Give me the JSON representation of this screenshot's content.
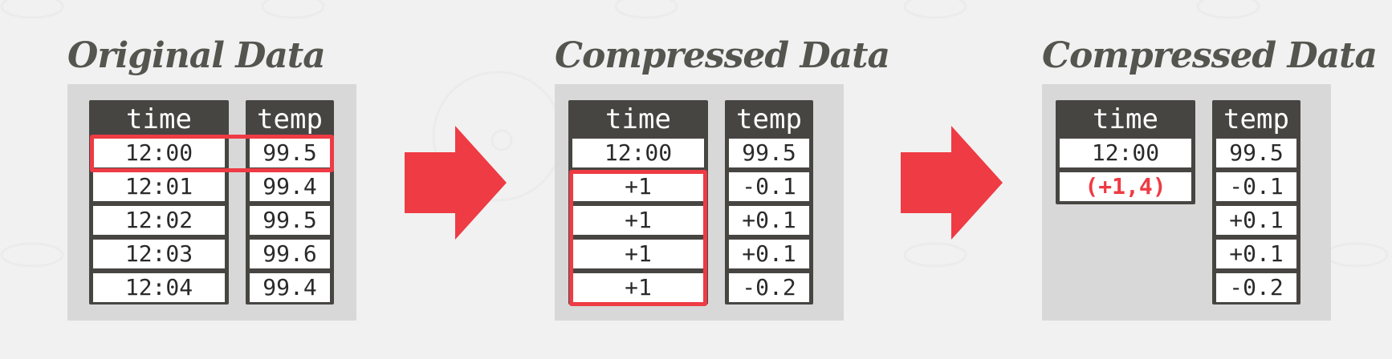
{
  "panels": [
    {
      "title": "Original Data",
      "time": {
        "header": "time",
        "values": [
          "12:00",
          "12:01",
          "12:02",
          "12:03",
          "12:04"
        ]
      },
      "temp": {
        "header": "temp",
        "values": [
          "99.5",
          "99.4",
          "99.5",
          "99.6",
          "99.4"
        ]
      }
    },
    {
      "title": "Compressed Data",
      "time": {
        "header": "time",
        "values": [
          "12:00",
          "+1",
          "+1",
          "+1",
          "+1"
        ]
      },
      "temp": {
        "header": "temp",
        "values": [
          "99.5",
          "-0.1",
          "+0.1",
          "+0.1",
          "-0.2"
        ]
      }
    },
    {
      "title": "Compressed Data",
      "time": {
        "header": "time",
        "values": [
          "12:00",
          "(+1,4)"
        ]
      },
      "temp": {
        "header": "temp",
        "values": [
          "99.5",
          "-0.1",
          "+0.1",
          "+0.1",
          "-0.2"
        ]
      }
    }
  ],
  "colors": {
    "accent": "#ee3b44",
    "column_dark": "#474542",
    "panel_bg": "#d8d8d8"
  }
}
